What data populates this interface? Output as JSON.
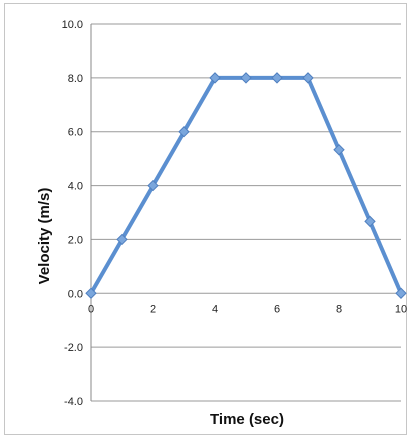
{
  "chart_data": {
    "type": "line",
    "title": "",
    "xlabel": "Time (sec)",
    "ylabel": "Velocity (m/s)",
    "xlim": [
      0,
      10
    ],
    "ylim": [
      -4,
      10
    ],
    "x_ticks": [
      "0",
      "2",
      "4",
      "6",
      "8",
      "10"
    ],
    "x_tick_values": [
      0,
      2,
      4,
      6,
      8,
      10
    ],
    "y_ticks": [
      "-4.0",
      "-2.0",
      "0.0",
      "2.0",
      "4.0",
      "6.0",
      "8.0",
      "10.0"
    ],
    "y_tick_values": [
      -4,
      -2,
      0,
      2,
      4,
      6,
      8,
      10
    ],
    "grid": true,
    "legend": "none",
    "series": [
      {
        "x": [
          0,
          1,
          2,
          3,
          4,
          5,
          6,
          7,
          8,
          9,
          10
        ],
        "values": [
          0,
          2,
          4,
          6,
          8,
          8,
          8,
          8,
          5.33,
          2.67,
          0
        ],
        "color": "#5b8fd0",
        "marker": "diamond"
      }
    ]
  }
}
